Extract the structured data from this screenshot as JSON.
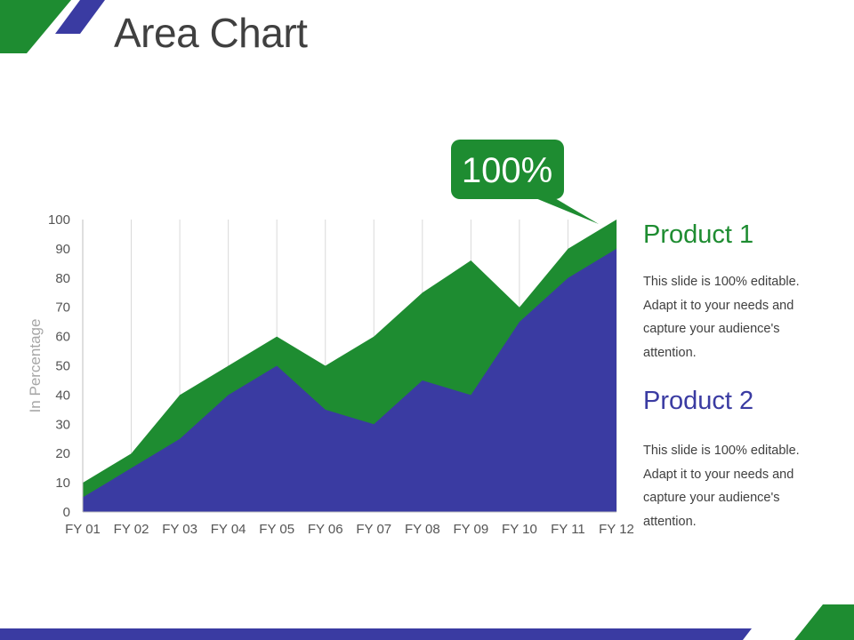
{
  "page": {
    "title": "Area Chart",
    "colors": {
      "green": "#1E8C31",
      "blue": "#3A3BA2",
      "grid": "#d9d9d9",
      "text": "#404040"
    }
  },
  "chart_data": {
    "type": "area",
    "categories": [
      "FY 01",
      "FY 02",
      "FY 03",
      "FY 04",
      "FY 05",
      "FY 06",
      "FY 07",
      "FY 08",
      "FY 09",
      "FY 10",
      "FY 11",
      "FY 12"
    ],
    "series": [
      {
        "name": "Product 1",
        "color": "#1E8C31",
        "values": [
          10,
          20,
          40,
          50,
          60,
          50,
          60,
          75,
          86,
          70,
          90,
          100
        ]
      },
      {
        "name": "Product 2",
        "color": "#3A3BA2",
        "values": [
          5,
          15,
          25,
          40,
          50,
          35,
          30,
          45,
          40,
          65,
          80,
          90
        ]
      }
    ],
    "ylabel": "In Percentage",
    "ylim": [
      0,
      100
    ],
    "yticks": [
      0,
      10,
      20,
      30,
      40,
      50,
      60,
      70,
      80,
      90,
      100
    ],
    "grid": "vertical",
    "callout": {
      "text": "100%",
      "category": "FY 12",
      "value": 100
    }
  },
  "legend": [
    {
      "heading": "Product 1",
      "description": "This slide is 100% editable. Adapt it to your needs and capture your audience's attention."
    },
    {
      "heading": "Product 2",
      "description": "This slide is 100% editable. Adapt it to your needs and capture your audience's attention."
    }
  ]
}
